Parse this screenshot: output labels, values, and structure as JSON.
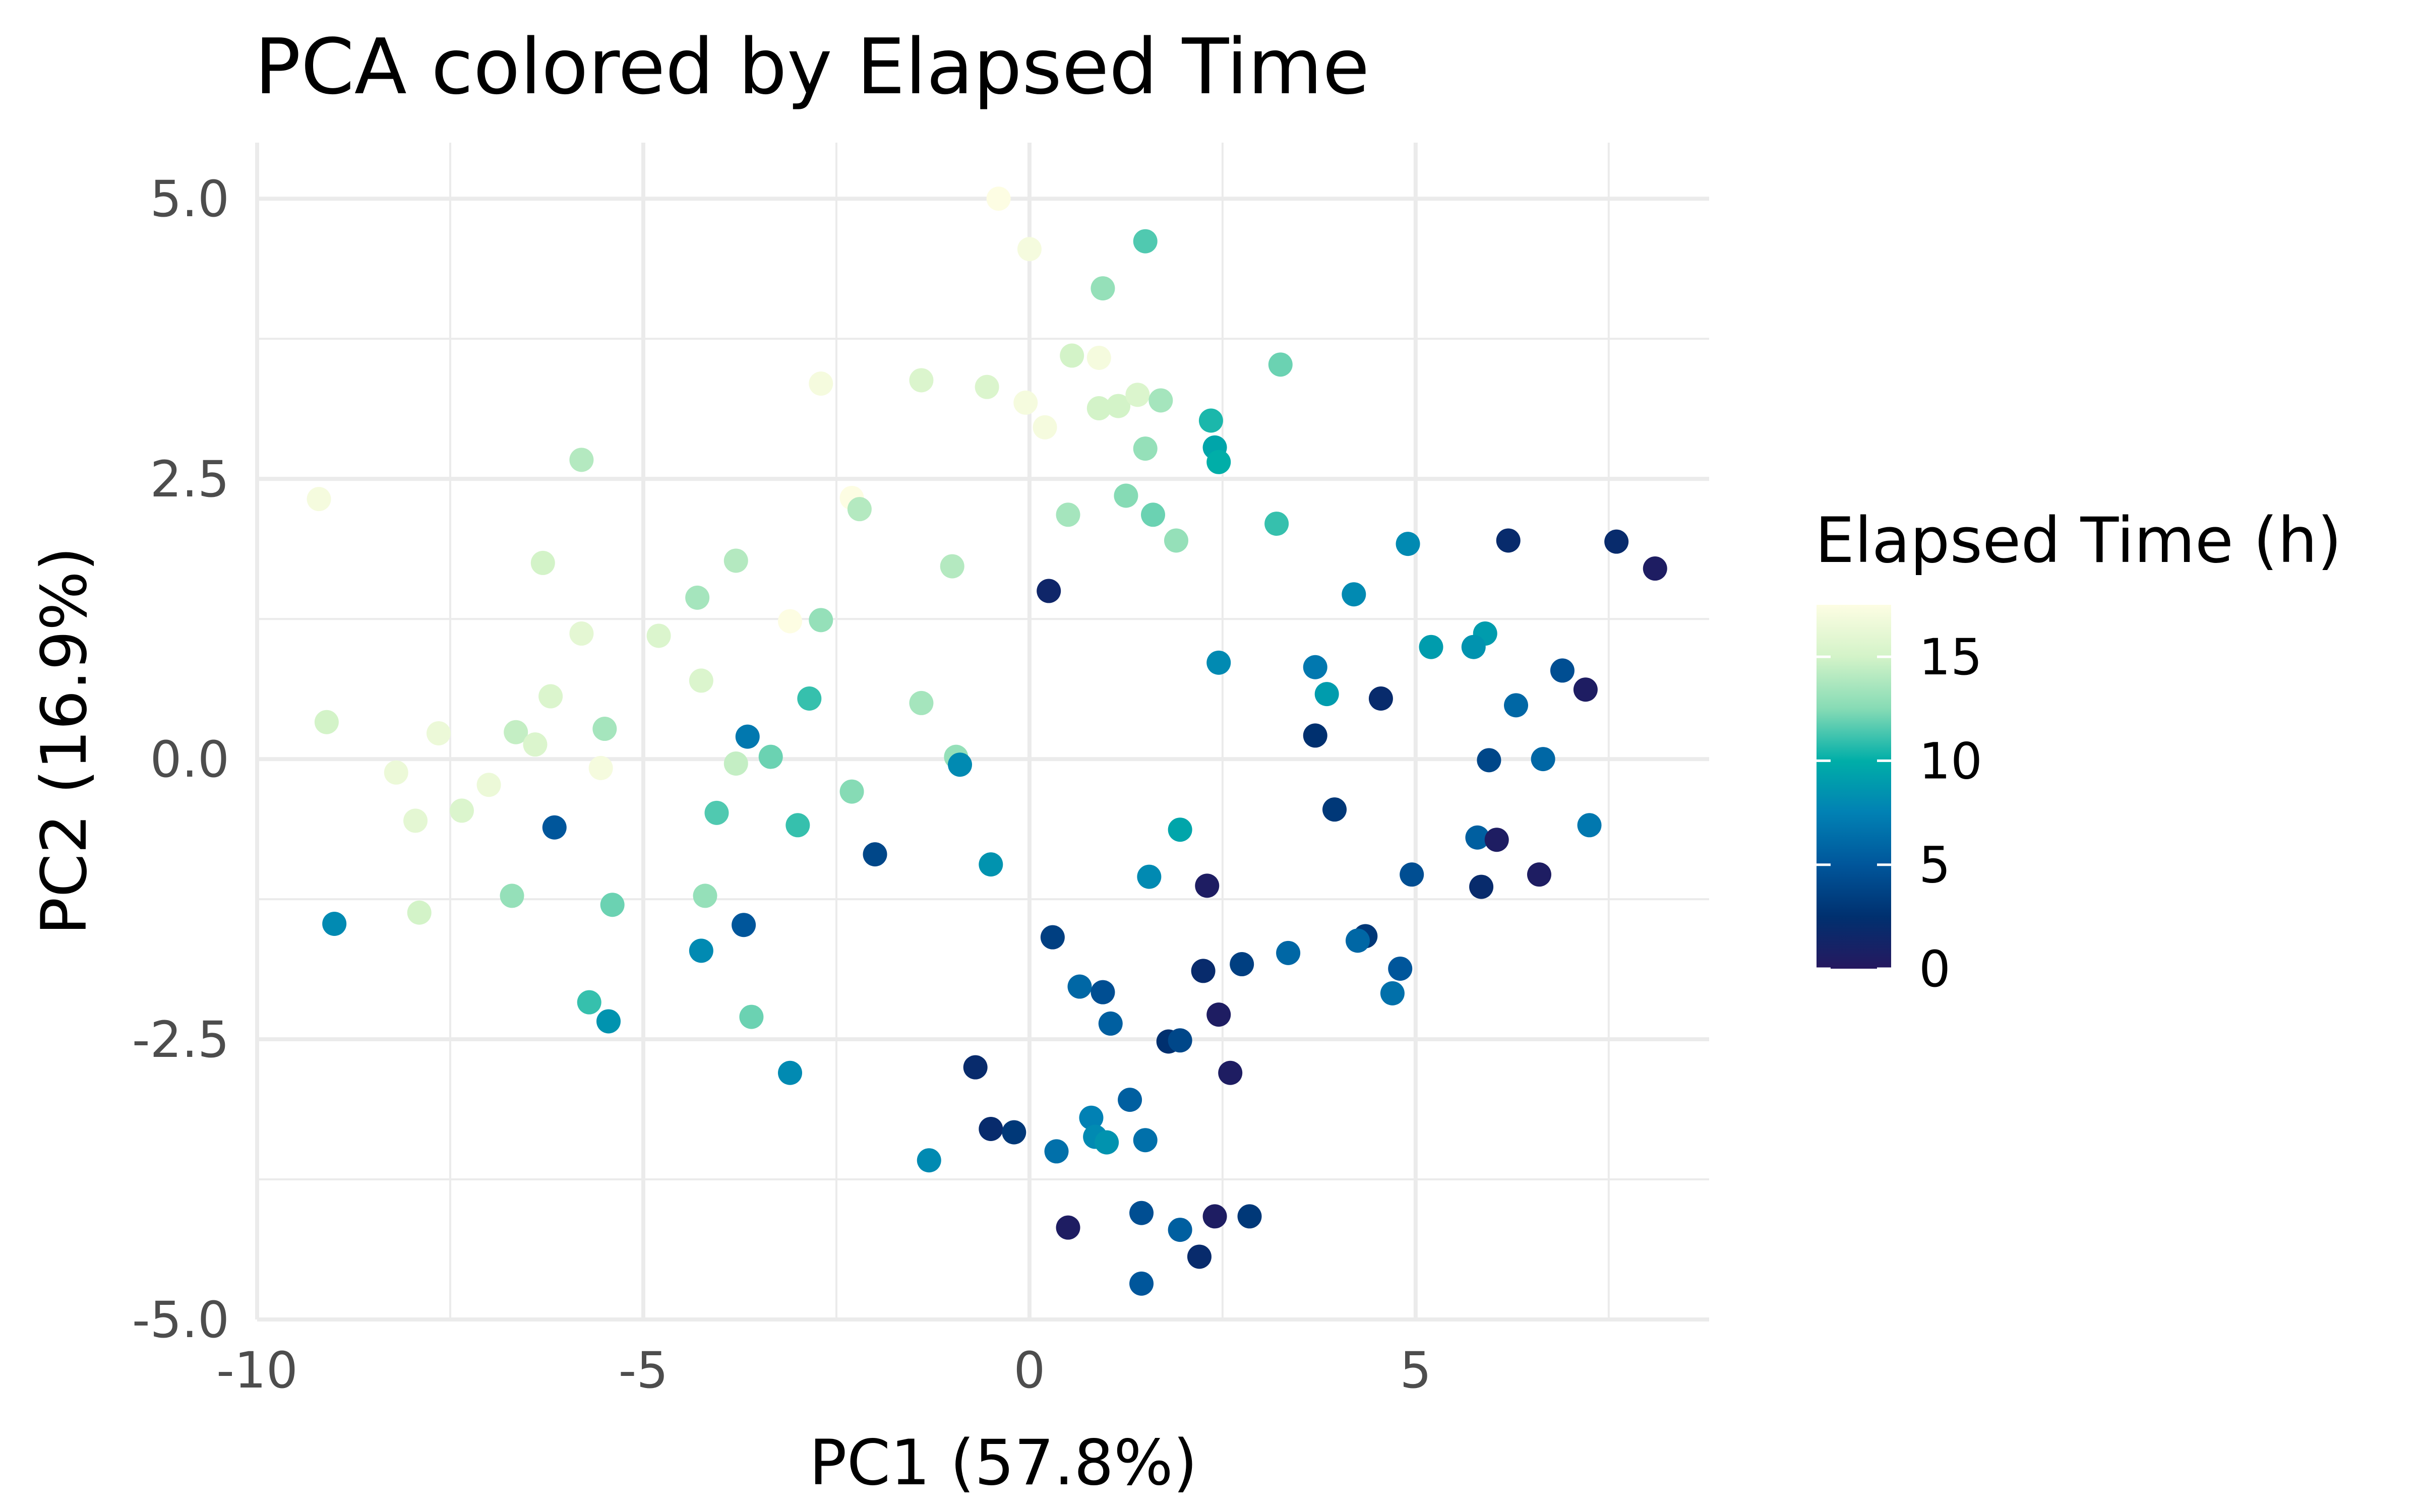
{
  "chart_data": {
    "type": "scatter",
    "title": "PCA colored by Elapsed Time",
    "xlabel": "PC1 (57.8%)",
    "ylabel": "PC2 (16.9%)",
    "xlim": [
      -10,
      8.8
    ],
    "ylim": [
      -5.0,
      5.5
    ],
    "x_ticks": [
      -10,
      -5,
      0,
      5
    ],
    "x_tick_labels": [
      "-10",
      "-5",
      "0",
      "5"
    ],
    "y_ticks": [
      -5.0,
      -2.5,
      0.0,
      2.5,
      5.0
    ],
    "y_tick_labels": [
      "-5.0",
      "-2.5",
      "0.0",
      "2.5",
      "5.0"
    ],
    "grid": true,
    "legend": {
      "title": "Elapsed Time (h)",
      "placement": "right",
      "ticks": [
        0,
        5,
        10,
        15
      ],
      "tick_labels": [
        "0",
        "5",
        "10",
        "15"
      ],
      "range": [
        0,
        17.5
      ]
    },
    "colorscale": [
      "#26185f",
      "#00306f",
      "#00569b",
      "#0181b4",
      "#00aea8",
      "#86dbb5",
      "#d3f3c8",
      "#fdfde3"
    ],
    "points": [
      {
        "x": -0.4,
        "y": 5.0,
        "t": 17.5
      },
      {
        "x": 0.0,
        "y": 4.55,
        "t": 17.0
      },
      {
        "x": 1.5,
        "y": 4.62,
        "t": 11.5
      },
      {
        "x": 0.95,
        "y": 4.2,
        "t": 13.0
      },
      {
        "x": 0.55,
        "y": 3.6,
        "t": 15.0
      },
      {
        "x": 0.9,
        "y": 3.58,
        "t": 17.0
      },
      {
        "x": -2.7,
        "y": 3.35,
        "t": 17.0
      },
      {
        "x": -1.4,
        "y": 3.38,
        "t": 15.5
      },
      {
        "x": -0.55,
        "y": 3.32,
        "t": 15.5
      },
      {
        "x": -0.05,
        "y": 3.18,
        "t": 17.0
      },
      {
        "x": 0.2,
        "y": 2.96,
        "t": 17.0
      },
      {
        "x": 0.9,
        "y": 3.13,
        "t": 15.0
      },
      {
        "x": 1.15,
        "y": 3.15,
        "t": 15.0
      },
      {
        "x": 1.4,
        "y": 3.25,
        "t": 15.5
      },
      {
        "x": 1.7,
        "y": 3.2,
        "t": 13.5
      },
      {
        "x": 3.25,
        "y": 3.52,
        "t": 12.0
      },
      {
        "x": 2.35,
        "y": 3.02,
        "t": 10.5
      },
      {
        "x": 2.4,
        "y": 2.78,
        "t": 9.5
      },
      {
        "x": 2.45,
        "y": 2.65,
        "t": 10.0
      },
      {
        "x": 1.5,
        "y": 2.77,
        "t": 13.0
      },
      {
        "x": 1.25,
        "y": 2.35,
        "t": 12.5
      },
      {
        "x": 0.5,
        "y": 2.18,
        "t": 13.5
      },
      {
        "x": 1.6,
        "y": 2.18,
        "t": 12.0
      },
      {
        "x": 1.9,
        "y": 1.95,
        "t": 13.0
      },
      {
        "x": 3.2,
        "y": 2.1,
        "t": 11.0
      },
      {
        "x": 4.9,
        "y": 1.92,
        "t": 8.0
      },
      {
        "x": 6.2,
        "y": 1.95,
        "t": 2.0
      },
      {
        "x": 7.6,
        "y": 1.94,
        "t": 2.0
      },
      {
        "x": 8.1,
        "y": 1.7,
        "t": 0.5
      },
      {
        "x": -9.2,
        "y": 2.32,
        "t": 17.0
      },
      {
        "x": -5.8,
        "y": 2.67,
        "t": 14.0
      },
      {
        "x": -2.3,
        "y": 2.33,
        "t": 17.5
      },
      {
        "x": -2.2,
        "y": 2.23,
        "t": 14.0
      },
      {
        "x": -6.3,
        "y": 1.75,
        "t": 15.0
      },
      {
        "x": -3.8,
        "y": 1.77,
        "t": 14.0
      },
      {
        "x": -1.0,
        "y": 1.72,
        "t": 14.0
      },
      {
        "x": 0.25,
        "y": 1.5,
        "t": 1.5
      },
      {
        "x": 4.2,
        "y": 1.47,
        "t": 8.0
      },
      {
        "x": -4.3,
        "y": 1.44,
        "t": 13.5
      },
      {
        "x": -3.1,
        "y": 1.23,
        "t": 17.5
      },
      {
        "x": -2.7,
        "y": 1.24,
        "t": 13.0
      },
      {
        "x": -5.8,
        "y": 1.12,
        "t": 16.0
      },
      {
        "x": -4.8,
        "y": 1.1,
        "t": 15.5
      },
      {
        "x": 5.9,
        "y": 1.12,
        "t": 9.0
      },
      {
        "x": 5.2,
        "y": 1.0,
        "t": 9.0
      },
      {
        "x": 5.75,
        "y": 1.0,
        "t": 8.5
      },
      {
        "x": 2.45,
        "y": 0.86,
        "t": 8.0
      },
      {
        "x": 3.7,
        "y": 0.82,
        "t": 7.0
      },
      {
        "x": 6.9,
        "y": 0.79,
        "t": 4.5
      },
      {
        "x": 7.2,
        "y": 0.62,
        "t": 0.5
      },
      {
        "x": -4.25,
        "y": 0.7,
        "t": 15.5
      },
      {
        "x": 3.85,
        "y": 0.58,
        "t": 9.0
      },
      {
        "x": 4.55,
        "y": 0.54,
        "t": 2.0
      },
      {
        "x": -6.2,
        "y": 0.56,
        "t": 15.5
      },
      {
        "x": -2.85,
        "y": 0.54,
        "t": 11.0
      },
      {
        "x": -1.4,
        "y": 0.5,
        "t": 13.5
      },
      {
        "x": 6.3,
        "y": 0.48,
        "t": 6.0
      },
      {
        "x": -9.1,
        "y": 0.33,
        "t": 15.0
      },
      {
        "x": -6.65,
        "y": 0.24,
        "t": 14.5
      },
      {
        "x": -5.5,
        "y": 0.27,
        "t": 13.5
      },
      {
        "x": -7.65,
        "y": 0.23,
        "t": 16.5
      },
      {
        "x": -6.4,
        "y": 0.13,
        "t": 15.5
      },
      {
        "x": -3.65,
        "y": 0.2,
        "t": 7.0
      },
      {
        "x": 3.7,
        "y": 0.21,
        "t": 2.5
      },
      {
        "x": -3.35,
        "y": 0.02,
        "t": 12.0
      },
      {
        "x": -3.8,
        "y": -0.04,
        "t": 14.5
      },
      {
        "x": -0.95,
        "y": 0.02,
        "t": 13.0
      },
      {
        "x": -0.9,
        "y": -0.05,
        "t": 8.0
      },
      {
        "x": 5.95,
        "y": -0.01,
        "t": 4.0
      },
      {
        "x": 6.65,
        "y": 0.0,
        "t": 6.0
      },
      {
        "x": -8.2,
        "y": -0.12,
        "t": 16.5
      },
      {
        "x": -5.55,
        "y": -0.08,
        "t": 17.0
      },
      {
        "x": -7.0,
        "y": -0.23,
        "t": 16.5
      },
      {
        "x": -2.3,
        "y": -0.29,
        "t": 12.5
      },
      {
        "x": -7.35,
        "y": -0.46,
        "t": 15.5
      },
      {
        "x": -4.05,
        "y": -0.48,
        "t": 11.5
      },
      {
        "x": 3.95,
        "y": -0.45,
        "t": 3.0
      },
      {
        "x": -7.95,
        "y": -0.55,
        "t": 16.0
      },
      {
        "x": -6.15,
        "y": -0.61,
        "t": 5.0
      },
      {
        "x": -3.0,
        "y": -0.59,
        "t": 11.0
      },
      {
        "x": 1.95,
        "y": -0.63,
        "t": 9.5
      },
      {
        "x": 7.25,
        "y": -0.59,
        "t": 7.0
      },
      {
        "x": 5.8,
        "y": -0.7,
        "t": 5.5
      },
      {
        "x": 6.05,
        "y": -0.72,
        "t": 0.5
      },
      {
        "x": -2.0,
        "y": -0.85,
        "t": 4.0
      },
      {
        "x": -0.5,
        "y": -0.94,
        "t": 8.5
      },
      {
        "x": 1.55,
        "y": -1.05,
        "t": 8.0
      },
      {
        "x": 4.95,
        "y": -1.03,
        "t": 4.5
      },
      {
        "x": 6.6,
        "y": -1.03,
        "t": 0.5
      },
      {
        "x": 2.3,
        "y": -1.13,
        "t": 0.5
      },
      {
        "x": 5.85,
        "y": -1.14,
        "t": 2.0
      },
      {
        "x": -6.7,
        "y": -1.22,
        "t": 13.0
      },
      {
        "x": -4.2,
        "y": -1.22,
        "t": 13.0
      },
      {
        "x": -5.4,
        "y": -1.3,
        "t": 12.0
      },
      {
        "x": -7.9,
        "y": -1.37,
        "t": 15.0
      },
      {
        "x": -9.0,
        "y": -1.47,
        "t": 8.0
      },
      {
        "x": -3.7,
        "y": -1.48,
        "t": 5.0
      },
      {
        "x": 0.3,
        "y": -1.59,
        "t": 3.5
      },
      {
        "x": 4.35,
        "y": -1.58,
        "t": 3.0
      },
      {
        "x": 4.25,
        "y": -1.62,
        "t": 6.0
      },
      {
        "x": 3.35,
        "y": -1.73,
        "t": 6.0
      },
      {
        "x": -4.25,
        "y": -1.71,
        "t": 8.0
      },
      {
        "x": 2.75,
        "y": -1.83,
        "t": 3.5
      },
      {
        "x": 2.25,
        "y": -1.89,
        "t": 2.0
      },
      {
        "x": 4.8,
        "y": -1.87,
        "t": 5.0
      },
      {
        "x": 0.65,
        "y": -2.03,
        "t": 6.0
      },
      {
        "x": 0.95,
        "y": -2.08,
        "t": 4.5
      },
      {
        "x": 4.7,
        "y": -2.09,
        "t": 6.5
      },
      {
        "x": -5.7,
        "y": -2.17,
        "t": 11.0
      },
      {
        "x": 2.45,
        "y": -2.28,
        "t": 0.5
      },
      {
        "x": -3.6,
        "y": -2.3,
        "t": 12.0
      },
      {
        "x": -5.45,
        "y": -2.34,
        "t": 8.5
      },
      {
        "x": 1.05,
        "y": -2.36,
        "t": 5.5
      },
      {
        "x": 1.8,
        "y": -2.52,
        "t": 2.5
      },
      {
        "x": 1.95,
        "y": -2.51,
        "t": 4.0
      },
      {
        "x": -0.7,
        "y": -2.75,
        "t": 2.0
      },
      {
        "x": 2.6,
        "y": -2.8,
        "t": 0.5
      },
      {
        "x": -3.1,
        "y": -2.8,
        "t": 8.0
      },
      {
        "x": 1.3,
        "y": -3.04,
        "t": 5.5
      },
      {
        "x": 0.8,
        "y": -3.2,
        "t": 7.5
      },
      {
        "x": -0.5,
        "y": -3.3,
        "t": 2.0
      },
      {
        "x": -0.2,
        "y": -3.33,
        "t": 3.0
      },
      {
        "x": 0.85,
        "y": -3.37,
        "t": 8.0
      },
      {
        "x": 1.0,
        "y": -3.42,
        "t": 8.5
      },
      {
        "x": 1.5,
        "y": -3.4,
        "t": 6.5
      },
      {
        "x": 0.35,
        "y": -3.5,
        "t": 6.5
      },
      {
        "x": -1.3,
        "y": -3.58,
        "t": 8.0
      },
      {
        "x": 1.45,
        "y": -4.05,
        "t": 4.5
      },
      {
        "x": 2.4,
        "y": -4.08,
        "t": 0.5
      },
      {
        "x": 2.85,
        "y": -4.08,
        "t": 3.0
      },
      {
        "x": 0.5,
        "y": -4.18,
        "t": 0.5
      },
      {
        "x": 1.95,
        "y": -4.2,
        "t": 5.5
      },
      {
        "x": 2.2,
        "y": -4.44,
        "t": 2.0
      },
      {
        "x": 1.45,
        "y": -4.68,
        "t": 5.0
      }
    ]
  }
}
